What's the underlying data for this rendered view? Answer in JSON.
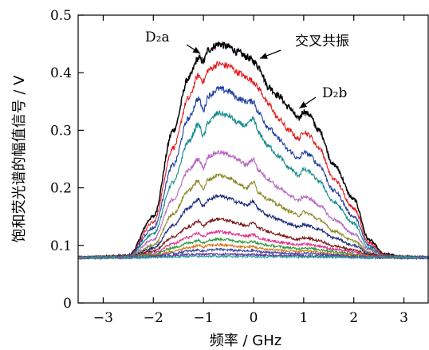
{
  "chart_data": {
    "type": "line",
    "xlabel": "频率 / GHz",
    "ylabel": "饱和荧光谱的幅值信号 / V",
    "xlim": [
      -3.5,
      3.5
    ],
    "ylim": [
      0,
      0.5
    ],
    "x_ticks": [
      -3,
      -2,
      -1,
      0,
      1,
      2,
      3
    ],
    "y_ticks": [
      0,
      0.1,
      0.2,
      0.3,
      0.4,
      0.5
    ],
    "x_tick_labels": [
      "−3",
      "−2",
      "−1",
      "0",
      "1",
      "2",
      "3"
    ],
    "y_tick_labels": [
      "0",
      "0.1",
      "0.2",
      "0.3",
      "0.4",
      "0.5"
    ],
    "grid": false,
    "baseline": 0.078,
    "x": [
      -3.5,
      -2.5,
      -2.0,
      -1.6,
      -1.3,
      -1.1,
      -1.0,
      -0.9,
      -0.7,
      -0.5,
      -0.3,
      -0.15,
      0.0,
      0.1,
      0.3,
      0.5,
      0.7,
      0.9,
      1.0,
      1.1,
      1.3,
      1.6,
      2.0,
      2.3,
      2.6,
      3.0,
      3.5
    ],
    "series": [
      {
        "color": "#000000",
        "values": [
          0.079,
          0.082,
          0.15,
          0.3,
          0.39,
          0.425,
          0.42,
          0.44,
          0.45,
          0.445,
          0.435,
          0.428,
          0.42,
          0.41,
          0.375,
          0.36,
          0.34,
          0.32,
          0.333,
          0.328,
          0.3,
          0.24,
          0.18,
          0.11,
          0.085,
          0.08,
          0.079
        ]
      },
      {
        "color": "#e31a1c",
        "values": [
          0.079,
          0.081,
          0.14,
          0.27,
          0.355,
          0.395,
          0.385,
          0.405,
          0.415,
          0.412,
          0.4,
          0.392,
          0.385,
          0.372,
          0.345,
          0.32,
          0.3,
          0.285,
          0.298,
          0.292,
          0.27,
          0.215,
          0.165,
          0.105,
          0.083,
          0.08,
          0.079
        ]
      },
      {
        "color": "#1f3f9f",
        "values": [
          0.079,
          0.081,
          0.13,
          0.24,
          0.32,
          0.355,
          0.335,
          0.36,
          0.372,
          0.368,
          0.355,
          0.35,
          0.35,
          0.33,
          0.305,
          0.285,
          0.265,
          0.25,
          0.262,
          0.258,
          0.24,
          0.195,
          0.15,
          0.1,
          0.082,
          0.08,
          0.079
        ]
      },
      {
        "color": "#138a8a",
        "values": [
          0.079,
          0.08,
          0.12,
          0.21,
          0.28,
          0.31,
          0.29,
          0.315,
          0.33,
          0.325,
          0.312,
          0.308,
          0.32,
          0.295,
          0.272,
          0.255,
          0.235,
          0.222,
          0.232,
          0.228,
          0.212,
          0.175,
          0.138,
          0.095,
          0.081,
          0.08,
          0.079
        ]
      },
      {
        "color": "#b565c0",
        "values": [
          0.079,
          0.08,
          0.11,
          0.18,
          0.23,
          0.25,
          0.235,
          0.255,
          0.262,
          0.258,
          0.248,
          0.24,
          0.25,
          0.23,
          0.215,
          0.2,
          0.188,
          0.178,
          0.185,
          0.182,
          0.17,
          0.145,
          0.12,
          0.092,
          0.08,
          0.079,
          0.079
        ]
      },
      {
        "color": "#8a8a2a",
        "values": [
          0.079,
          0.08,
          0.1,
          0.155,
          0.195,
          0.212,
          0.198,
          0.215,
          0.222,
          0.218,
          0.208,
          0.2,
          0.21,
          0.192,
          0.18,
          0.17,
          0.16,
          0.152,
          0.158,
          0.155,
          0.145,
          0.125,
          0.108,
          0.088,
          0.08,
          0.079,
          0.079
        ]
      },
      {
        "color": "#1a2a7a",
        "values": [
          0.079,
          0.08,
          0.095,
          0.135,
          0.165,
          0.18,
          0.168,
          0.18,
          0.186,
          0.182,
          0.175,
          0.17,
          0.176,
          0.162,
          0.152,
          0.145,
          0.138,
          0.132,
          0.136,
          0.134,
          0.128,
          0.113,
          0.1,
          0.086,
          0.08,
          0.079,
          0.079
        ]
      },
      {
        "color": "#7a1a1a",
        "values": [
          0.079,
          0.08,
          0.09,
          0.115,
          0.132,
          0.142,
          0.133,
          0.142,
          0.146,
          0.143,
          0.138,
          0.134,
          0.139,
          0.13,
          0.124,
          0.119,
          0.114,
          0.11,
          0.113,
          0.112,
          0.108,
          0.099,
          0.092,
          0.084,
          0.08,
          0.079,
          0.079
        ]
      },
      {
        "color": "#e0308a",
        "values": [
          0.079,
          0.08,
          0.086,
          0.103,
          0.114,
          0.121,
          0.115,
          0.121,
          0.124,
          0.122,
          0.119,
          0.116,
          0.119,
          0.113,
          0.109,
          0.106,
          0.103,
          0.101,
          0.103,
          0.102,
          0.099,
          0.093,
          0.088,
          0.082,
          0.08,
          0.079,
          0.079
        ]
      },
      {
        "color": "#2a9a3a",
        "values": [
          0.079,
          0.08,
          0.084,
          0.096,
          0.104,
          0.109,
          0.105,
          0.109,
          0.111,
          0.11,
          0.107,
          0.105,
          0.107,
          0.103,
          0.1,
          0.098,
          0.096,
          0.094,
          0.096,
          0.095,
          0.093,
          0.089,
          0.085,
          0.081,
          0.08,
          0.079,
          0.079
        ]
      },
      {
        "color": "#d8781a",
        "values": [
          0.079,
          0.079,
          0.082,
          0.09,
          0.096,
          0.1,
          0.097,
          0.1,
          0.101,
          0.1,
          0.098,
          0.097,
          0.098,
          0.095,
          0.093,
          0.092,
          0.09,
          0.089,
          0.09,
          0.09,
          0.088,
          0.085,
          0.083,
          0.08,
          0.079,
          0.079,
          0.079
        ]
      },
      {
        "color": "#3a4aa0",
        "values": [
          0.079,
          0.079,
          0.081,
          0.086,
          0.09,
          0.092,
          0.09,
          0.092,
          0.093,
          0.092,
          0.091,
          0.09,
          0.091,
          0.089,
          0.088,
          0.087,
          0.086,
          0.085,
          0.086,
          0.086,
          0.085,
          0.083,
          0.081,
          0.079,
          0.079,
          0.079,
          0.079
        ]
      },
      {
        "color": "#6a2a9a",
        "values": [
          0.079,
          0.079,
          0.08,
          0.082,
          0.084,
          0.085,
          0.084,
          0.085,
          0.085,
          0.085,
          0.084,
          0.084,
          0.084,
          0.083,
          0.083,
          0.082,
          0.082,
          0.082,
          0.082,
          0.082,
          0.081,
          0.081,
          0.08,
          0.079,
          0.079,
          0.079,
          0.079
        ]
      },
      {
        "color": "#2aa0a0",
        "values": [
          0.079,
          0.079,
          0.079,
          0.08,
          0.081,
          0.081,
          0.081,
          0.081,
          0.081,
          0.081,
          0.081,
          0.081,
          0.081,
          0.08,
          0.08,
          0.08,
          0.08,
          0.08,
          0.08,
          0.08,
          0.08,
          0.08,
          0.079,
          0.079,
          0.079,
          0.079,
          0.079
        ]
      }
    ],
    "annotations": [
      {
        "id": "d2a",
        "text": "D₂a",
        "x": -1.0,
        "y": 0.425,
        "style": "roman"
      },
      {
        "id": "cross",
        "text": "交叉共振",
        "x": 0.0,
        "y": 0.422,
        "style": "cn"
      },
      {
        "id": "d2b",
        "text": "D₂b",
        "x": 0.85,
        "y": 0.33,
        "style": "roman"
      }
    ]
  }
}
